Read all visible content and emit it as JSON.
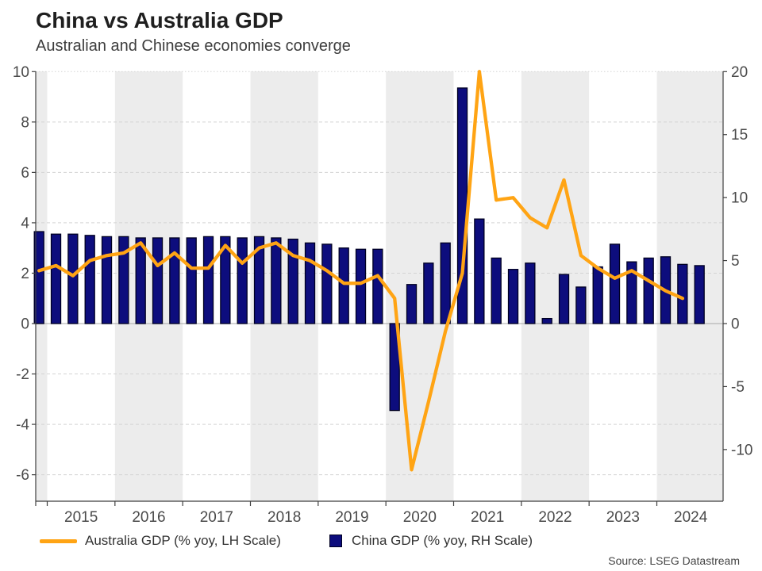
{
  "header": {
    "title": "China vs Australia GDP",
    "subtitle": "Australian and Chinese economies converge"
  },
  "source": "Source: LSEG Datastream",
  "legend": {
    "australia": {
      "label": "Australia GDP (% yoy, LH Scale)",
      "swatch": "line"
    },
    "china": {
      "label": "China GDP (% yoy, RH Scale)",
      "swatch": "square"
    }
  },
  "colors": {
    "australia_line": "#FFA414",
    "china_bar_fill": "#0D0D7D",
    "china_bar_stroke": "#000022",
    "year_band": "#ECECEC",
    "gridline": "#D4D4D4",
    "zero_line": "#A8A8A8",
    "axis": "#3F3F3F",
    "axis_label": "#4A4A4A"
  },
  "chart_data": {
    "type": "combo-bar-line",
    "frequency": "quarterly",
    "start_quarter": "2014 Q4",
    "quarters": [
      "2014 Q4",
      "2015 Q1",
      "2015 Q2",
      "2015 Q3",
      "2015 Q4",
      "2016 Q1",
      "2016 Q2",
      "2016 Q3",
      "2016 Q4",
      "2017 Q1",
      "2017 Q2",
      "2017 Q3",
      "2017 Q4",
      "2018 Q1",
      "2018 Q2",
      "2018 Q3",
      "2018 Q4",
      "2019 Q1",
      "2019 Q2",
      "2019 Q3",
      "2019 Q4",
      "2020 Q1",
      "2020 Q2",
      "2020 Q3",
      "2020 Q4",
      "2021 Q1",
      "2021 Q2",
      "2021 Q3",
      "2021 Q4",
      "2022 Q1",
      "2022 Q2",
      "2022 Q3",
      "2022 Q4",
      "2023 Q1",
      "2023 Q2",
      "2023 Q3",
      "2023 Q4",
      "2024 Q1",
      "2024 Q2",
      "2024 Q3"
    ],
    "x_tick_labels": [
      "2015",
      "2016",
      "2017",
      "2018",
      "2019",
      "2020",
      "2021",
      "2022",
      "2023",
      "2024"
    ],
    "shaded_years": [
      "2016",
      "2018",
      "2020",
      "2022",
      "2024"
    ],
    "left_axis": {
      "ticks": [
        10,
        8,
        6,
        4,
        2,
        0,
        -2,
        -4,
        -6
      ],
      "range": [
        -7,
        10
      ],
      "grid": "dashed"
    },
    "right_axis": {
      "ticks": [
        20,
        15,
        10,
        5,
        0,
        -5,
        -10
      ],
      "range": [
        -14,
        20
      ],
      "scale_vs_left": 2
    },
    "series": [
      {
        "name": "Australia GDP (% yoy, LH Scale)",
        "type": "line",
        "axis": "left",
        "values": [
          2.1,
          2.3,
          1.9,
          2.5,
          2.7,
          2.8,
          3.2,
          2.3,
          2.8,
          2.2,
          2.2,
          3.1,
          2.4,
          3.0,
          3.2,
          2.7,
          2.5,
          2.1,
          1.6,
          1.6,
          1.9,
          1.0,
          -5.8,
          -3.1,
          -0.3,
          2.0,
          10.0,
          4.9,
          5.0,
          4.2,
          3.8,
          5.7,
          2.7,
          2.2,
          1.8,
          2.1,
          1.7,
          1.3,
          1.0,
          null
        ]
      },
      {
        "name": "China GDP (% yoy, RH Scale)",
        "type": "bar",
        "axis": "right",
        "values": [
          7.3,
          7.1,
          7.1,
          7.0,
          6.9,
          6.9,
          6.8,
          6.8,
          6.8,
          6.8,
          6.9,
          6.9,
          6.8,
          6.9,
          6.8,
          6.7,
          6.4,
          6.3,
          6.0,
          5.9,
          5.9,
          -6.9,
          3.1,
          4.8,
          6.4,
          18.7,
          8.3,
          5.2,
          4.3,
          4.8,
          0.4,
          3.9,
          2.9,
          4.5,
          6.3,
          4.9,
          5.2,
          5.3,
          4.7,
          4.6
        ]
      }
    ]
  }
}
